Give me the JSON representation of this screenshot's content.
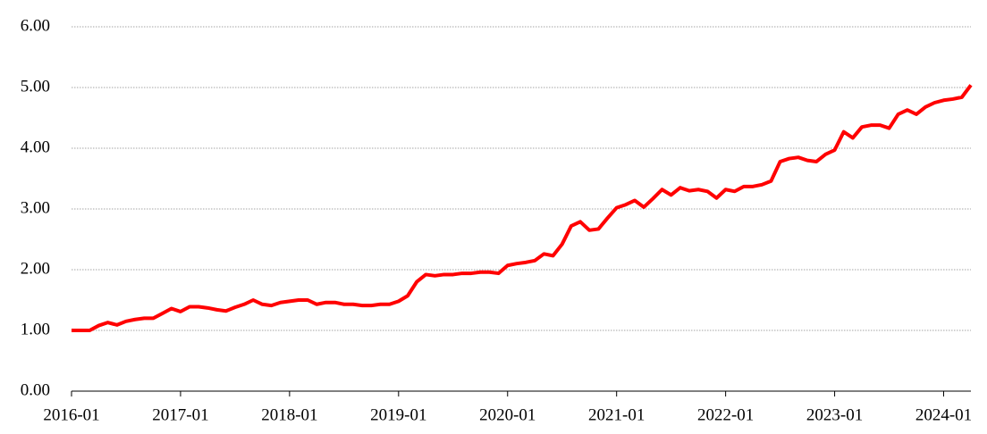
{
  "chart_data": {
    "type": "line",
    "categories": [
      "2016-01",
      null,
      null,
      null,
      null,
      null,
      null,
      null,
      null,
      null,
      null,
      null,
      "2017-01",
      null,
      null,
      null,
      null,
      null,
      null,
      null,
      null,
      null,
      null,
      null,
      "2018-01",
      null,
      null,
      null,
      null,
      null,
      null,
      null,
      null,
      null,
      null,
      null,
      "2019-01",
      null,
      null,
      null,
      null,
      null,
      null,
      null,
      null,
      null,
      null,
      null,
      "2020-01",
      null,
      null,
      null,
      null,
      null,
      null,
      null,
      null,
      null,
      null,
      null,
      "2021-01",
      null,
      null,
      null,
      null,
      null,
      null,
      null,
      null,
      null,
      null,
      null,
      "2022-01",
      null,
      null,
      null,
      null,
      null,
      null,
      null,
      null,
      null,
      null,
      null,
      "2023-01",
      null,
      null,
      null,
      null,
      null,
      null,
      null,
      null,
      null,
      null,
      null,
      "2024-01",
      null,
      null,
      null
    ],
    "series": [
      {
        "color": "#ff0000",
        "values": [
          1.0,
          1.0,
          1.0,
          1.08,
          1.13,
          1.09,
          1.15,
          1.18,
          1.2,
          1.2,
          1.28,
          1.36,
          1.31,
          1.39,
          1.39,
          1.37,
          1.34,
          1.32,
          1.38,
          1.43,
          1.5,
          1.43,
          1.41,
          1.46,
          1.48,
          1.5,
          1.5,
          1.43,
          1.46,
          1.46,
          1.43,
          1.43,
          1.41,
          1.41,
          1.43,
          1.43,
          1.48,
          1.57,
          1.8,
          1.92,
          1.9,
          1.92,
          1.92,
          1.94,
          1.94,
          1.96,
          1.96,
          1.94,
          2.07,
          2.1,
          2.12,
          2.15,
          2.26,
          2.23,
          2.42,
          2.72,
          2.79,
          2.65,
          2.67,
          2.85,
          3.02,
          3.07,
          3.14,
          3.03,
          3.17,
          3.32,
          3.23,
          3.35,
          3.3,
          3.32,
          3.29,
          3.18,
          3.32,
          3.29,
          3.37,
          3.37,
          3.4,
          3.46,
          3.78,
          3.83,
          3.85,
          3.8,
          3.78,
          3.9,
          3.97,
          4.27,
          4.17,
          4.35,
          4.38,
          4.38,
          4.33,
          4.56,
          4.63,
          4.56,
          4.68,
          4.75,
          4.79,
          4.81,
          4.84,
          5.04
        ]
      }
    ],
    "ylim": [
      0,
      6
    ],
    "yticks": [
      {
        "value": 0,
        "label": "0.00"
      },
      {
        "value": 1,
        "label": "1.00"
      },
      {
        "value": 2,
        "label": "2.00"
      },
      {
        "value": 3,
        "label": "3.00"
      },
      {
        "value": 4,
        "label": "4.00"
      },
      {
        "value": 5,
        "label": "5.00"
      },
      {
        "value": 6,
        "label": "6.00"
      }
    ],
    "grid": true
  }
}
